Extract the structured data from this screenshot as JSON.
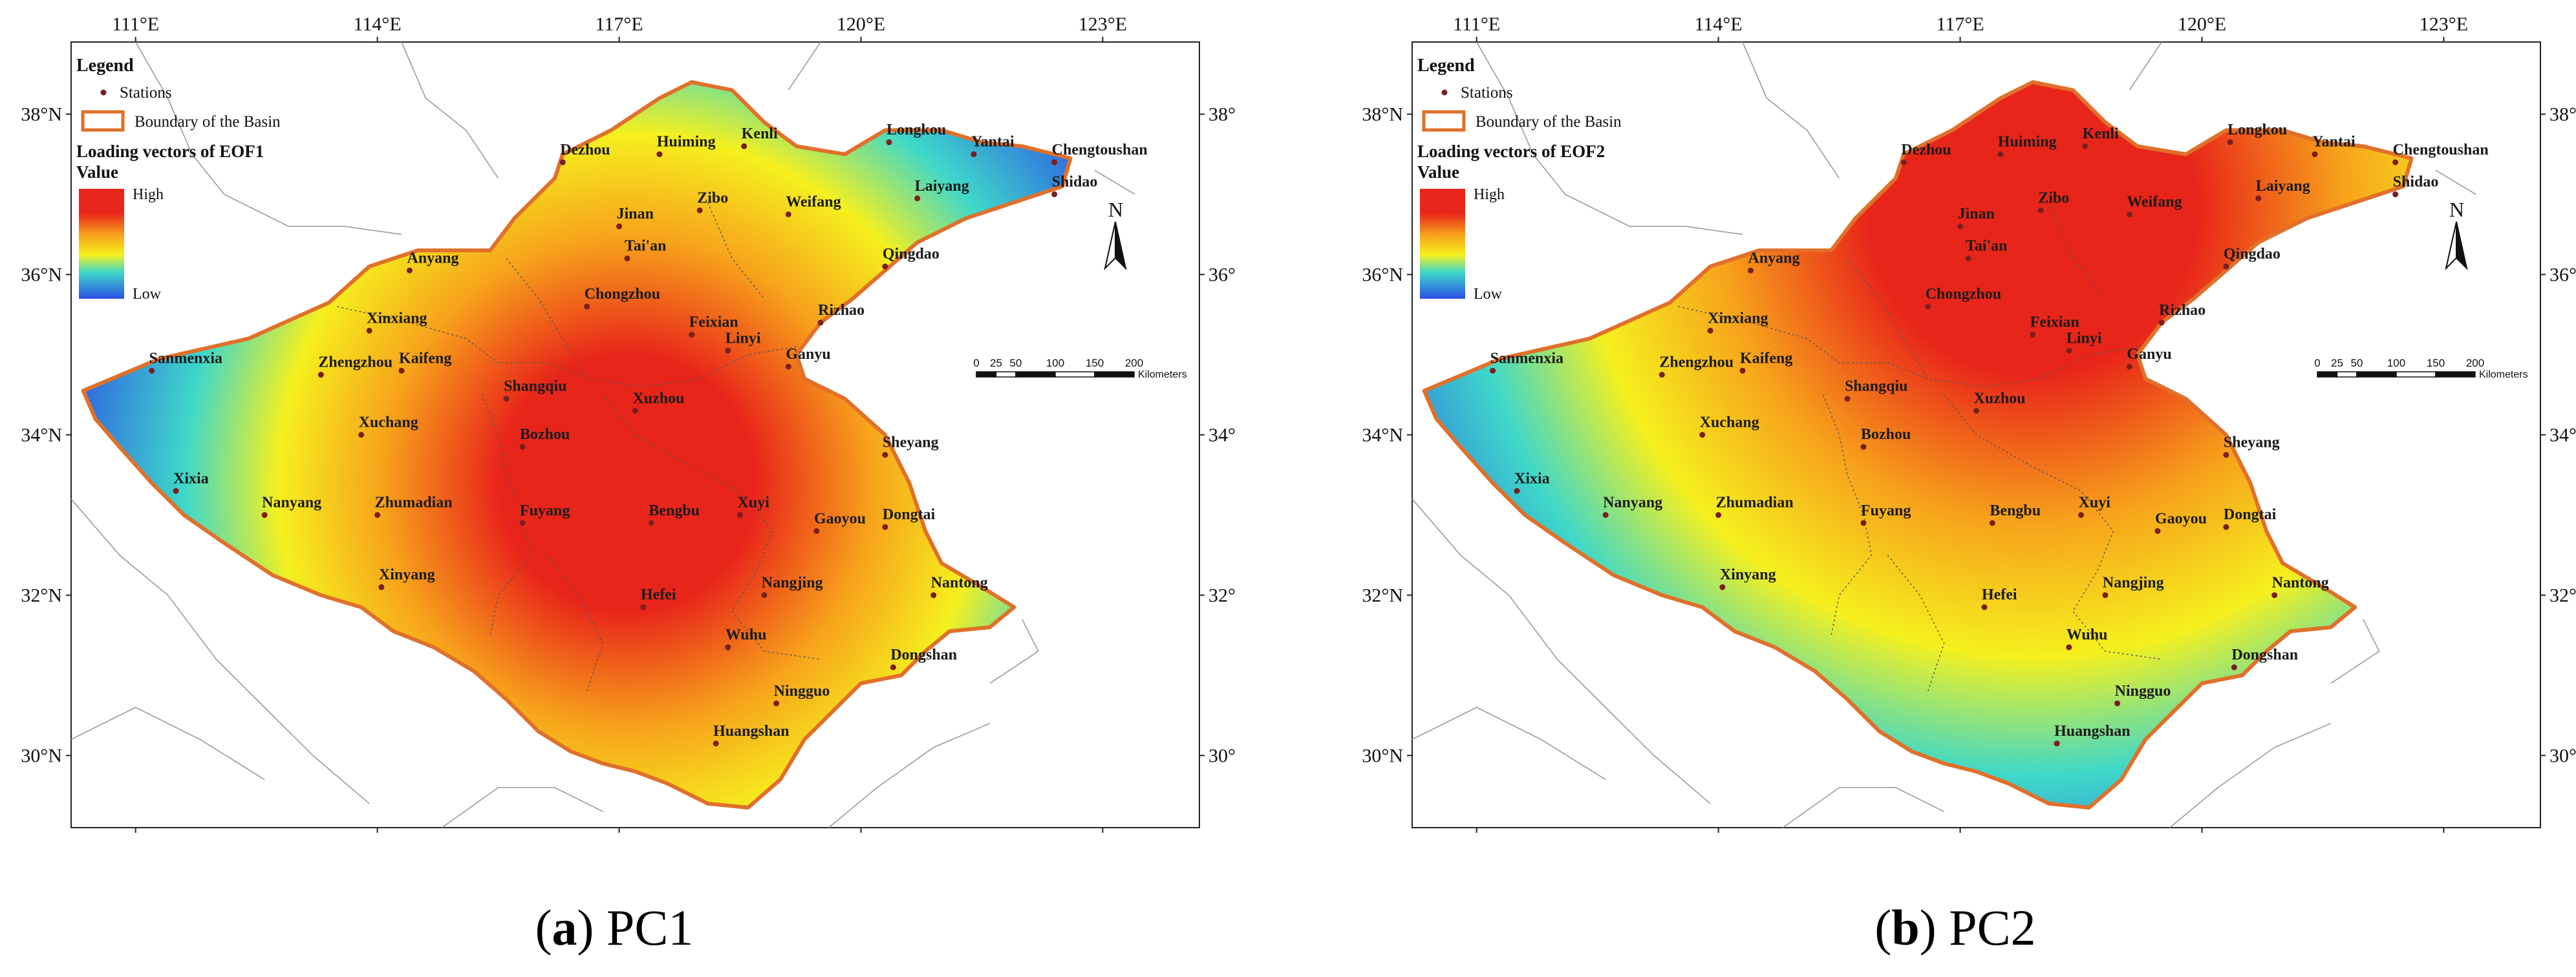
{
  "legend": {
    "title": "Legend",
    "stations_label": "Stations",
    "boundary_label": "Boundary of the Basin",
    "value_label": "Value",
    "high_label": "High",
    "low_label": "Low"
  },
  "north_label": "N",
  "scalebar": {
    "ticks": [
      "0",
      "25",
      "50",
      "100",
      "150",
      "200"
    ],
    "tick_values": [
      0,
      25,
      50,
      100,
      150,
      200
    ],
    "unit": "Kilometers"
  },
  "axes": {
    "lon_ticks": [
      "111°E",
      "114°E",
      "117°E",
      "120°E",
      "123°E"
    ],
    "lon_values": [
      111,
      114,
      117,
      120,
      123
    ],
    "lat_ticks": [
      "38°N",
      "36°N",
      "34°N",
      "32°N",
      "30°N"
    ],
    "lat_values": [
      38,
      36,
      34,
      32,
      30
    ],
    "lon_range": [
      110.2,
      124.2
    ],
    "lat_range": [
      29.1,
      38.9
    ]
  },
  "cities": [
    {
      "name": "Dezhou",
      "lon": 116.3,
      "lat": 37.4
    },
    {
      "name": "Huiming",
      "lon": 117.5,
      "lat": 37.5
    },
    {
      "name": "Kenli",
      "lon": 118.55,
      "lat": 37.6
    },
    {
      "name": "Longkou",
      "lon": 120.35,
      "lat": 37.65
    },
    {
      "name": "Yantai",
      "lon": 121.4,
      "lat": 37.5
    },
    {
      "name": "Chengtoushan",
      "lon": 122.4,
      "lat": 37.4
    },
    {
      "name": "Shidao",
      "lon": 122.4,
      "lat": 37.0
    },
    {
      "name": "Laiyang",
      "lon": 120.7,
      "lat": 36.95
    },
    {
      "name": "Weifang",
      "lon": 119.1,
      "lat": 36.75
    },
    {
      "name": "Zibo",
      "lon": 118.0,
      "lat": 36.8
    },
    {
      "name": "Jinan",
      "lon": 117.0,
      "lat": 36.6
    },
    {
      "name": "Tai'an",
      "lon": 117.1,
      "lat": 36.2
    },
    {
      "name": "Qingdao",
      "lon": 120.3,
      "lat": 36.1
    },
    {
      "name": "Anyang",
      "lon": 114.4,
      "lat": 36.05
    },
    {
      "name": "Chongzhou",
      "lon": 116.6,
      "lat": 35.6
    },
    {
      "name": "Rizhao",
      "lon": 119.5,
      "lat": 35.4
    },
    {
      "name": "Feixian",
      "lon": 117.9,
      "lat": 35.25
    },
    {
      "name": "Linyi",
      "lon": 118.35,
      "lat": 35.05
    },
    {
      "name": "Xinxiang",
      "lon": 113.9,
      "lat": 35.3
    },
    {
      "name": "Sanmenxia",
      "lon": 111.2,
      "lat": 34.8
    },
    {
      "name": "Zhengzhou",
      "lon": 113.3,
      "lat": 34.75
    },
    {
      "name": "Kaifeng",
      "lon": 114.3,
      "lat": 34.8
    },
    {
      "name": "Ganyu",
      "lon": 119.1,
      "lat": 34.85
    },
    {
      "name": "Shangqiu",
      "lon": 115.6,
      "lat": 34.45
    },
    {
      "name": "Xuzhou",
      "lon": 117.2,
      "lat": 34.3
    },
    {
      "name": "Xuchang",
      "lon": 113.8,
      "lat": 34.0
    },
    {
      "name": "Bozhou",
      "lon": 115.8,
      "lat": 33.85
    },
    {
      "name": "Sheyang",
      "lon": 120.3,
      "lat": 33.75
    },
    {
      "name": "Xixia",
      "lon": 111.5,
      "lat": 33.3
    },
    {
      "name": "Nanyang",
      "lon": 112.6,
      "lat": 33.0
    },
    {
      "name": "Zhumadian",
      "lon": 114.0,
      "lat": 33.0
    },
    {
      "name": "Fuyang",
      "lon": 115.8,
      "lat": 32.9
    },
    {
      "name": "Bengbu",
      "lon": 117.4,
      "lat": 32.9
    },
    {
      "name": "Xuyi",
      "lon": 118.5,
      "lat": 33.0
    },
    {
      "name": "Gaoyou",
      "lon": 119.45,
      "lat": 32.8
    },
    {
      "name": "Dongtai",
      "lon": 120.3,
      "lat": 32.85
    },
    {
      "name": "Xinyang",
      "lon": 114.05,
      "lat": 32.1
    },
    {
      "name": "Hefei",
      "lon": 117.3,
      "lat": 31.85
    },
    {
      "name": "Nangjing",
      "lon": 118.8,
      "lat": 32.0
    },
    {
      "name": "Nantong",
      "lon": 120.9,
      "lat": 32.0
    },
    {
      "name": "Wuhu",
      "lon": 118.35,
      "lat": 31.35
    },
    {
      "name": "Dongshan",
      "lon": 120.4,
      "lat": 31.1
    },
    {
      "name": "Ningguo",
      "lon": 118.95,
      "lat": 30.65
    },
    {
      "name": "Huangshan",
      "lon": 118.2,
      "lat": 30.15
    }
  ],
  "panels": [
    {
      "id": "a",
      "title": "Loading vectors of EOF1",
      "caption_letter": "a",
      "caption_text": "PC1",
      "high_center": {
        "lon": 117.1,
        "lat": 33.4
      }
    },
    {
      "id": "b",
      "title": "Loading vectors of EOF2",
      "caption_letter": "b",
      "caption_text": "PC2",
      "high_center": {
        "lon": 117.9,
        "lat": 36.8
      }
    }
  ],
  "colors": {
    "high": "#e8251a",
    "mid_high": "#f7a21b",
    "mid": "#f5f01e",
    "mid_low": "#3fd8c9",
    "low": "#2b4ee6",
    "boundary": "#e0702a",
    "station": "#7a1f1f"
  }
}
